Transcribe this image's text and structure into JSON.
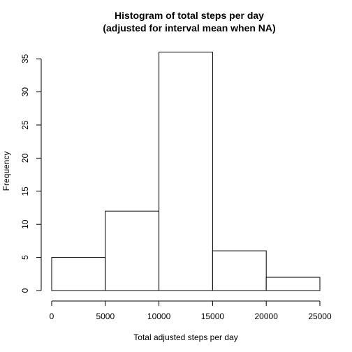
{
  "chart_data": {
    "type": "bar",
    "title": "Histogram of total steps per day",
    "subtitle": "(adjusted for interval mean when NA)",
    "xlabel": "Total adjusted steps per day",
    "ylabel": "Frequency",
    "bins": [
      {
        "from": 0,
        "to": 5000,
        "count": 5
      },
      {
        "from": 5000,
        "to": 10000,
        "count": 12
      },
      {
        "from": 10000,
        "to": 15000,
        "count": 36
      },
      {
        "from": 15000,
        "to": 20000,
        "count": 6
      },
      {
        "from": 20000,
        "to": 25000,
        "count": 2
      }
    ],
    "xlim": [
      0,
      25000
    ],
    "ylim": [
      0,
      36
    ],
    "x_ticks": [
      "0",
      "5000",
      "10000",
      "15000",
      "20000",
      "25000"
    ],
    "y_ticks": [
      "0",
      "5",
      "10",
      "15",
      "20",
      "25",
      "30",
      "35"
    ],
    "grid": false,
    "legend": "none"
  }
}
